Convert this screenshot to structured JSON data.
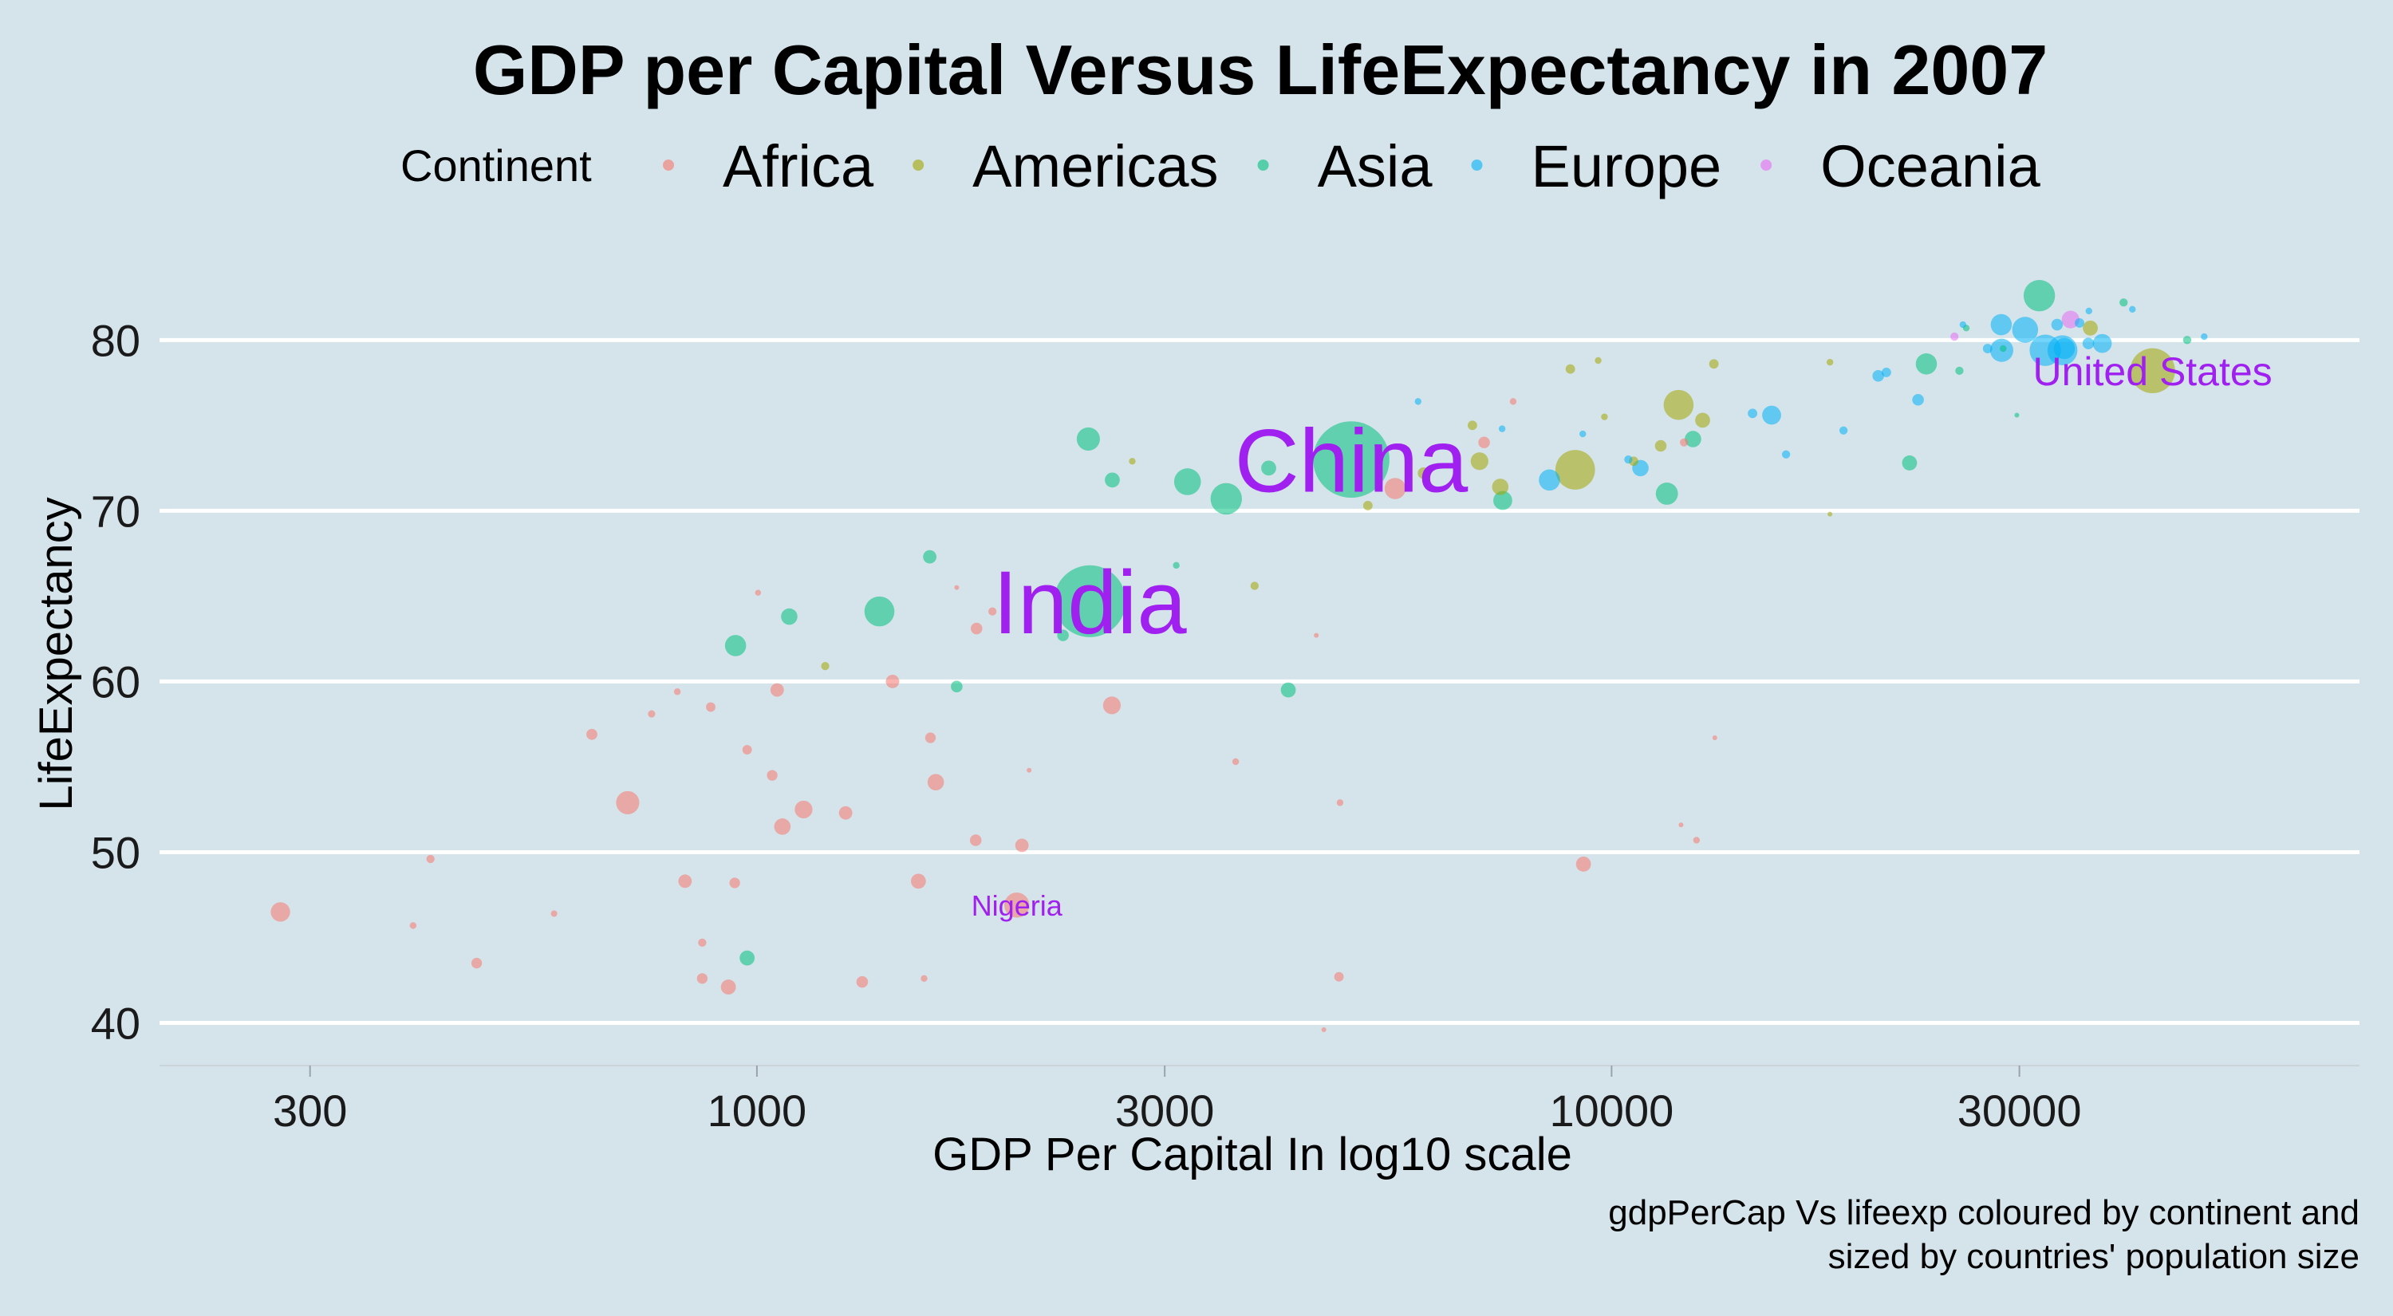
{
  "chart_data": {
    "type": "scatter",
    "title": "GDP per Capital Versus LifeExpectancy in 2007",
    "xlabel": "GDP Per Capital In log10 scale",
    "ylabel": "LifeExpectancy",
    "caption_line1": "gdpPerCap Vs lifeexp coloured by continent and",
    "caption_line2": "sized by countries' population size",
    "x_scale": "log10",
    "xlim": [
      200,
      75000
    ],
    "ylim": [
      37.5,
      84.5
    ],
    "x_ticks": [
      300,
      1000,
      3000,
      10000,
      30000
    ],
    "x_tick_labels": [
      "300",
      "1000",
      "3000",
      "10000",
      "30000"
    ],
    "y_ticks": [
      40,
      50,
      60,
      70,
      80
    ],
    "y_tick_labels": [
      "40",
      "50",
      "60",
      "70",
      "80"
    ],
    "grid": "horizontal-major",
    "legend_position": "top",
    "legend": {
      "title": "Continent",
      "items": [
        {
          "name": "Africa",
          "color": "#f8766d"
        },
        {
          "name": "Americas",
          "color": "#a3a500"
        },
        {
          "name": "Asia",
          "color": "#00bf7d"
        },
        {
          "name": "Europe",
          "color": "#00b0f6"
        },
        {
          "name": "Oceania",
          "color": "#e76bf3"
        }
      ]
    },
    "annotations": [
      {
        "text": "China",
        "x": 4959,
        "y": 73.0,
        "size": "large"
      },
      {
        "text": "India",
        "x": 2452,
        "y": 64.7,
        "size": "large"
      },
      {
        "text": "United States",
        "x": 42951,
        "y": 78.2,
        "size": "medium"
      },
      {
        "text": "Nigeria",
        "x": 2014,
        "y": 46.9,
        "size": "small"
      }
    ],
    "series": [
      {
        "name": "Africa",
        "points": [
          {
            "x": 277,
            "y": 46.5,
            "pop": 8.4
          },
          {
            "x": 415,
            "y": 49.6,
            "pop": 1.5
          },
          {
            "x": 470,
            "y": 43.5,
            "pop": 2.5
          },
          {
            "x": 396,
            "y": 45.7,
            "pop": 1
          },
          {
            "x": 579,
            "y": 46.4,
            "pop": 0.9
          },
          {
            "x": 641,
            "y": 56.9,
            "pop": 2.7
          },
          {
            "x": 706,
            "y": 52.9,
            "pop": 12
          },
          {
            "x": 753,
            "y": 58.1,
            "pop": 1.2
          },
          {
            "x": 824,
            "y": 48.3,
            "pop": 4
          },
          {
            "x": 863,
            "y": 44.7,
            "pop": 1.5
          },
          {
            "x": 807,
            "y": 59.4,
            "pop": 1
          },
          {
            "x": 863,
            "y": 42.6,
            "pop": 2.5
          },
          {
            "x": 883,
            "y": 58.5,
            "pop": 2
          },
          {
            "x": 926,
            "y": 42.1,
            "pop": 5
          },
          {
            "x": 942,
            "y": 48.2,
            "pop": 2.5
          },
          {
            "x": 974,
            "y": 56.0,
            "pop": 2
          },
          {
            "x": 1042,
            "y": 54.5,
            "pop": 2.5
          },
          {
            "x": 1056,
            "y": 59.5,
            "pop": 4
          },
          {
            "x": 1071,
            "y": 51.5,
            "pop": 6
          },
          {
            "x": 1134,
            "y": 52.5,
            "pop": 7
          },
          {
            "x": 1003,
            "y": 65.2,
            "pop": 0.8
          },
          {
            "x": 1270,
            "y": 52.3,
            "pop": 4
          },
          {
            "x": 1328,
            "y": 42.4,
            "pop": 3
          },
          {
            "x": 1441,
            "y": 60.0,
            "pop": 4
          },
          {
            "x": 1545,
            "y": 48.3,
            "pop": 5
          },
          {
            "x": 1619,
            "y": 54.1,
            "pop": 6
          },
          {
            "x": 1596,
            "y": 56.7,
            "pop": 2.5
          },
          {
            "x": 1569,
            "y": 42.6,
            "pop": 1
          },
          {
            "x": 1803,
            "y": 50.7,
            "pop": 3
          },
          {
            "x": 1807,
            "y": 63.1,
            "pop": 3
          },
          {
            "x": 1886,
            "y": 64.1,
            "pop": 1.5
          },
          {
            "x": 1713,
            "y": 65.5,
            "pop": 0.5
          },
          {
            "x": 2014,
            "y": 46.9,
            "pop": 14
          },
          {
            "x": 2042,
            "y": 50.4,
            "pop": 4
          },
          {
            "x": 2082,
            "y": 54.8,
            "pop": 0.5
          },
          {
            "x": 2602,
            "y": 58.6,
            "pop": 7
          },
          {
            "x": 3632,
            "y": 55.3,
            "pop": 1
          },
          {
            "x": 4513,
            "y": 62.7,
            "pop": 0.5
          },
          {
            "x": 4797,
            "y": 42.7,
            "pop": 2
          },
          {
            "x": 4811,
            "y": 52.9,
            "pop": 1
          },
          {
            "x": 4606,
            "y": 39.6,
            "pop": 0.5
          },
          {
            "x": 5581,
            "y": 71.3,
            "pop": 10
          },
          {
            "x": 7093,
            "y": 74.0,
            "pop": 3
          },
          {
            "x": 7670,
            "y": 76.4,
            "pop": 1
          },
          {
            "x": 9270,
            "y": 49.3,
            "pop": 5
          },
          {
            "x": 12154,
            "y": 74.0,
            "pop": 1.5
          },
          {
            "x": 12570,
            "y": 50.7,
            "pop": 1
          },
          {
            "x": 12057,
            "y": 51.6,
            "pop": 0.5
          },
          {
            "x": 13206,
            "y": 56.7,
            "pop": 0.5
          }
        ]
      },
      {
        "name": "Americas",
        "points": [
          {
            "x": 1202,
            "y": 60.9,
            "pop": 1.5
          },
          {
            "x": 2749,
            "y": 72.9,
            "pop": 1
          },
          {
            "x": 3822,
            "y": 65.6,
            "pop": 1.5
          },
          {
            "x": 5186,
            "y": 70.3,
            "pop": 2
          },
          {
            "x": 6025,
            "y": 72.2,
            "pop": 3
          },
          {
            "x": 7006,
            "y": 72.9,
            "pop": 7
          },
          {
            "x": 6873,
            "y": 75.0,
            "pop": 2
          },
          {
            "x": 7409,
            "y": 71.4,
            "pop": 6
          },
          {
            "x": 8948,
            "y": 78.3,
            "pop": 2
          },
          {
            "x": 9066,
            "y": 72.4,
            "pop": 35
          },
          {
            "x": 9645,
            "y": 78.8,
            "pop": 1
          },
          {
            "x": 9809,
            "y": 75.5,
            "pop": 1
          },
          {
            "x": 10611,
            "y": 72.9,
            "pop": 2
          },
          {
            "x": 11415,
            "y": 73.8,
            "pop": 3
          },
          {
            "x": 11978,
            "y": 76.2,
            "pop": 20
          },
          {
            "x": 12779,
            "y": 75.3,
            "pop": 5
          },
          {
            "x": 13172,
            "y": 78.6,
            "pop": 2
          },
          {
            "x": 18009,
            "y": 78.7,
            "pop": 1
          },
          {
            "x": 18008,
            "y": 69.8,
            "pop": 0.5
          },
          {
            "x": 36319,
            "y": 80.7,
            "pop": 5
          },
          {
            "x": 42951,
            "y": 78.2,
            "pop": 45
          }
        ]
      },
      {
        "name": "Asia",
        "points": [
          {
            "x": 974,
            "y": 43.8,
            "pop": 5
          },
          {
            "x": 944,
            "y": 62.1,
            "pop": 10
          },
          {
            "x": 1091,
            "y": 63.8,
            "pop": 6
          },
          {
            "x": 1391,
            "y": 64.1,
            "pop": 20
          },
          {
            "x": 1593,
            "y": 67.3,
            "pop": 4
          },
          {
            "x": 1713,
            "y": 59.7,
            "pop": 3
          },
          {
            "x": 2281,
            "y": 62.7,
            "pop": 3
          },
          {
            "x": 2452,
            "y": 64.7,
            "pop": 115
          },
          {
            "x": 2442,
            "y": 74.2,
            "pop": 12
          },
          {
            "x": 3095,
            "y": 66.8,
            "pop": 1
          },
          {
            "x": 2605,
            "y": 71.8,
            "pop": 5
          },
          {
            "x": 3190,
            "y": 71.7,
            "pop": 16
          },
          {
            "x": 3541,
            "y": 70.7,
            "pop": 22
          },
          {
            "x": 4185,
            "y": 59.5,
            "pop": 5
          },
          {
            "x": 3970,
            "y": 72.5,
            "pop": 5
          },
          {
            "x": 4959,
            "y": 73.0,
            "pop": 130
          },
          {
            "x": 7458,
            "y": 70.6,
            "pop": 8
          },
          {
            "x": 11606,
            "y": 71.0,
            "pop": 11
          },
          {
            "x": 12452,
            "y": 74.2,
            "pop": 6
          },
          {
            "x": 22316,
            "y": 72.8,
            "pop": 5
          },
          {
            "x": 23348,
            "y": 78.6,
            "pop": 10
          },
          {
            "x": 25523,
            "y": 78.2,
            "pop": 1.5
          },
          {
            "x": 28718,
            "y": 79.5,
            "pop": 1
          },
          {
            "x": 29796,
            "y": 75.6,
            "pop": 0.5
          },
          {
            "x": 31656,
            "y": 82.6,
            "pop": 22
          },
          {
            "x": 47143,
            "y": 80.0,
            "pop": 1.5
          },
          {
            "x": 39725,
            "y": 82.2,
            "pop": 1.5
          },
          {
            "x": 26000,
            "y": 80.7,
            "pop": 1
          }
        ]
      },
      {
        "name": "Europe",
        "points": [
          {
            "x": 5937,
            "y": 76.4,
            "pop": 1
          },
          {
            "x": 7446,
            "y": 74.8,
            "pop": 1
          },
          {
            "x": 8458,
            "y": 71.8,
            "pop": 10
          },
          {
            "x": 9253,
            "y": 74.5,
            "pop": 1
          },
          {
            "x": 10461,
            "y": 73.0,
            "pop": 1.5
          },
          {
            "x": 10808,
            "y": 72.5,
            "pop": 6
          },
          {
            "x": 14619,
            "y": 75.7,
            "pop": 2
          },
          {
            "x": 15390,
            "y": 75.6,
            "pop": 8
          },
          {
            "x": 18678,
            "y": 74.7,
            "pop": 1.5
          },
          {
            "x": 20510,
            "y": 77.9,
            "pop": 3
          },
          {
            "x": 22833,
            "y": 76.5,
            "pop": 3
          },
          {
            "x": 27538,
            "y": 79.5,
            "pop": 2
          },
          {
            "x": 28570,
            "y": 80.9,
            "pop": 10
          },
          {
            "x": 28604,
            "y": 79.4,
            "pop": 12
          },
          {
            "x": 30470,
            "y": 80.6,
            "pop": 15
          },
          {
            "x": 32170,
            "y": 79.4,
            "pop": 22
          },
          {
            "x": 33692,
            "y": 79.4,
            "pop": 20
          },
          {
            "x": 33860,
            "y": 79.5,
            "pop": 10
          },
          {
            "x": 35278,
            "y": 81.0,
            "pop": 2
          },
          {
            "x": 37506,
            "y": 79.8,
            "pop": 8
          },
          {
            "x": 36126,
            "y": 79.8,
            "pop": 3
          },
          {
            "x": 40676,
            "y": 81.8,
            "pop": 1
          },
          {
            "x": 49357,
            "y": 80.2,
            "pop": 1
          },
          {
            "x": 36180,
            "y": 81.7,
            "pop": 1
          },
          {
            "x": 33207,
            "y": 80.9,
            "pop": 3
          },
          {
            "x": 25768,
            "y": 80.9,
            "pop": 1
          },
          {
            "x": 20965,
            "y": 78.1,
            "pop": 2
          },
          {
            "x": 16000,
            "y": 73.3,
            "pop": 1.5
          }
        ]
      },
      {
        "name": "Oceania",
        "points": [
          {
            "x": 25185,
            "y": 80.2,
            "pop": 1.5
          },
          {
            "x": 34435,
            "y": 81.2,
            "pop": 7
          }
        ]
      }
    ]
  }
}
